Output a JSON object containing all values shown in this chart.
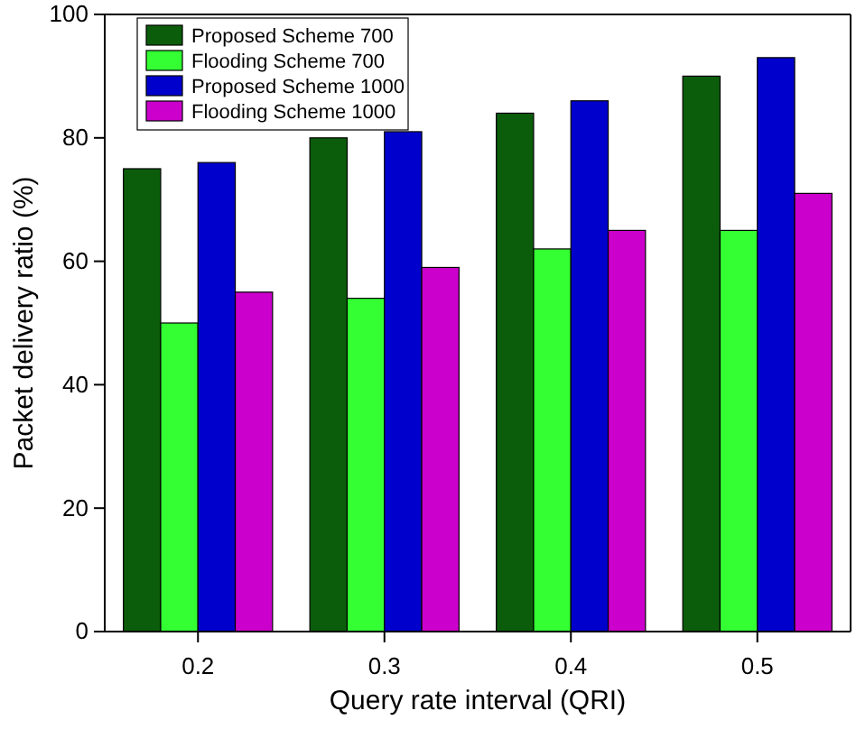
{
  "chart_data": {
    "type": "bar",
    "xlabel": "Query rate interval (QRI)",
    "ylabel": "Packet delivery ratio (%)",
    "categories": [
      "0.2",
      "0.3",
      "0.4",
      "0.5"
    ],
    "series": [
      {
        "name": "Proposed Scheme 700",
        "color": "#0b5d0b",
        "values": [
          75,
          80,
          84,
          90
        ]
      },
      {
        "name": "Flooding Scheme 700",
        "color": "#33ff33",
        "values": [
          50,
          54,
          62,
          65
        ]
      },
      {
        "name": "Proposed Scheme 1000",
        "color": "#0000cc",
        "values": [
          76,
          81,
          86,
          93
        ]
      },
      {
        "name": "Flooding Scheme 1000",
        "color": "#cc00cc",
        "values": [
          55,
          59,
          65,
          71
        ]
      }
    ],
    "ylim": [
      0,
      100
    ],
    "yticks": [
      0,
      20,
      40,
      60,
      80,
      100
    ],
    "legend": "top left"
  }
}
